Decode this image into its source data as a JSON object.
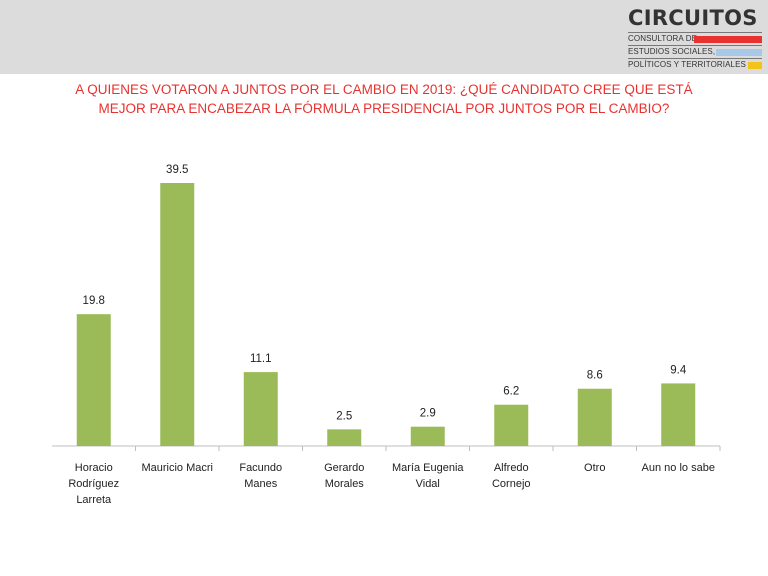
{
  "header": {
    "logo_name": "CIRCUITOS",
    "logo_lines": [
      "CONSULTORA DE",
      "ESTUDIOS SOCIALES,",
      "POLÍTICOS Y TERRITORIALES"
    ],
    "logo_colors": [
      "#e8322f",
      "#a8c8e8",
      "#f0c419"
    ]
  },
  "chart_data": {
    "type": "bar",
    "title_lines": [
      "A QUIENES VOTARON A JUNTOS POR EL CAMBIO EN 2019: ¿QUÉ CANDIDATO CREE QUE ESTÁ",
      "MEJOR PARA ENCABEZAR LA FÓRMULA PRESIDENCIAL POR JUNTOS POR EL CAMBIO?"
    ],
    "categories": [
      "Horacio\nRodríguez\nLarreta",
      "Mauricio Macri",
      "Facundo\nManes",
      "Gerardo\nMorales",
      "María Eugenia\nVidal",
      "Alfredo\nCornejo",
      "Otro",
      "Aun no lo sabe"
    ],
    "values": [
      19.8,
      39.5,
      11.1,
      2.5,
      2.9,
      6.2,
      8.6,
      9.4
    ],
    "value_labels": [
      "19.8",
      "39.5",
      "11.1",
      "2.5",
      "2.9",
      "6.2",
      "8.6",
      "9.4"
    ],
    "bar_color": "#9bbb59",
    "ylim": [
      0,
      40
    ],
    "grid": false,
    "legend": "none"
  }
}
